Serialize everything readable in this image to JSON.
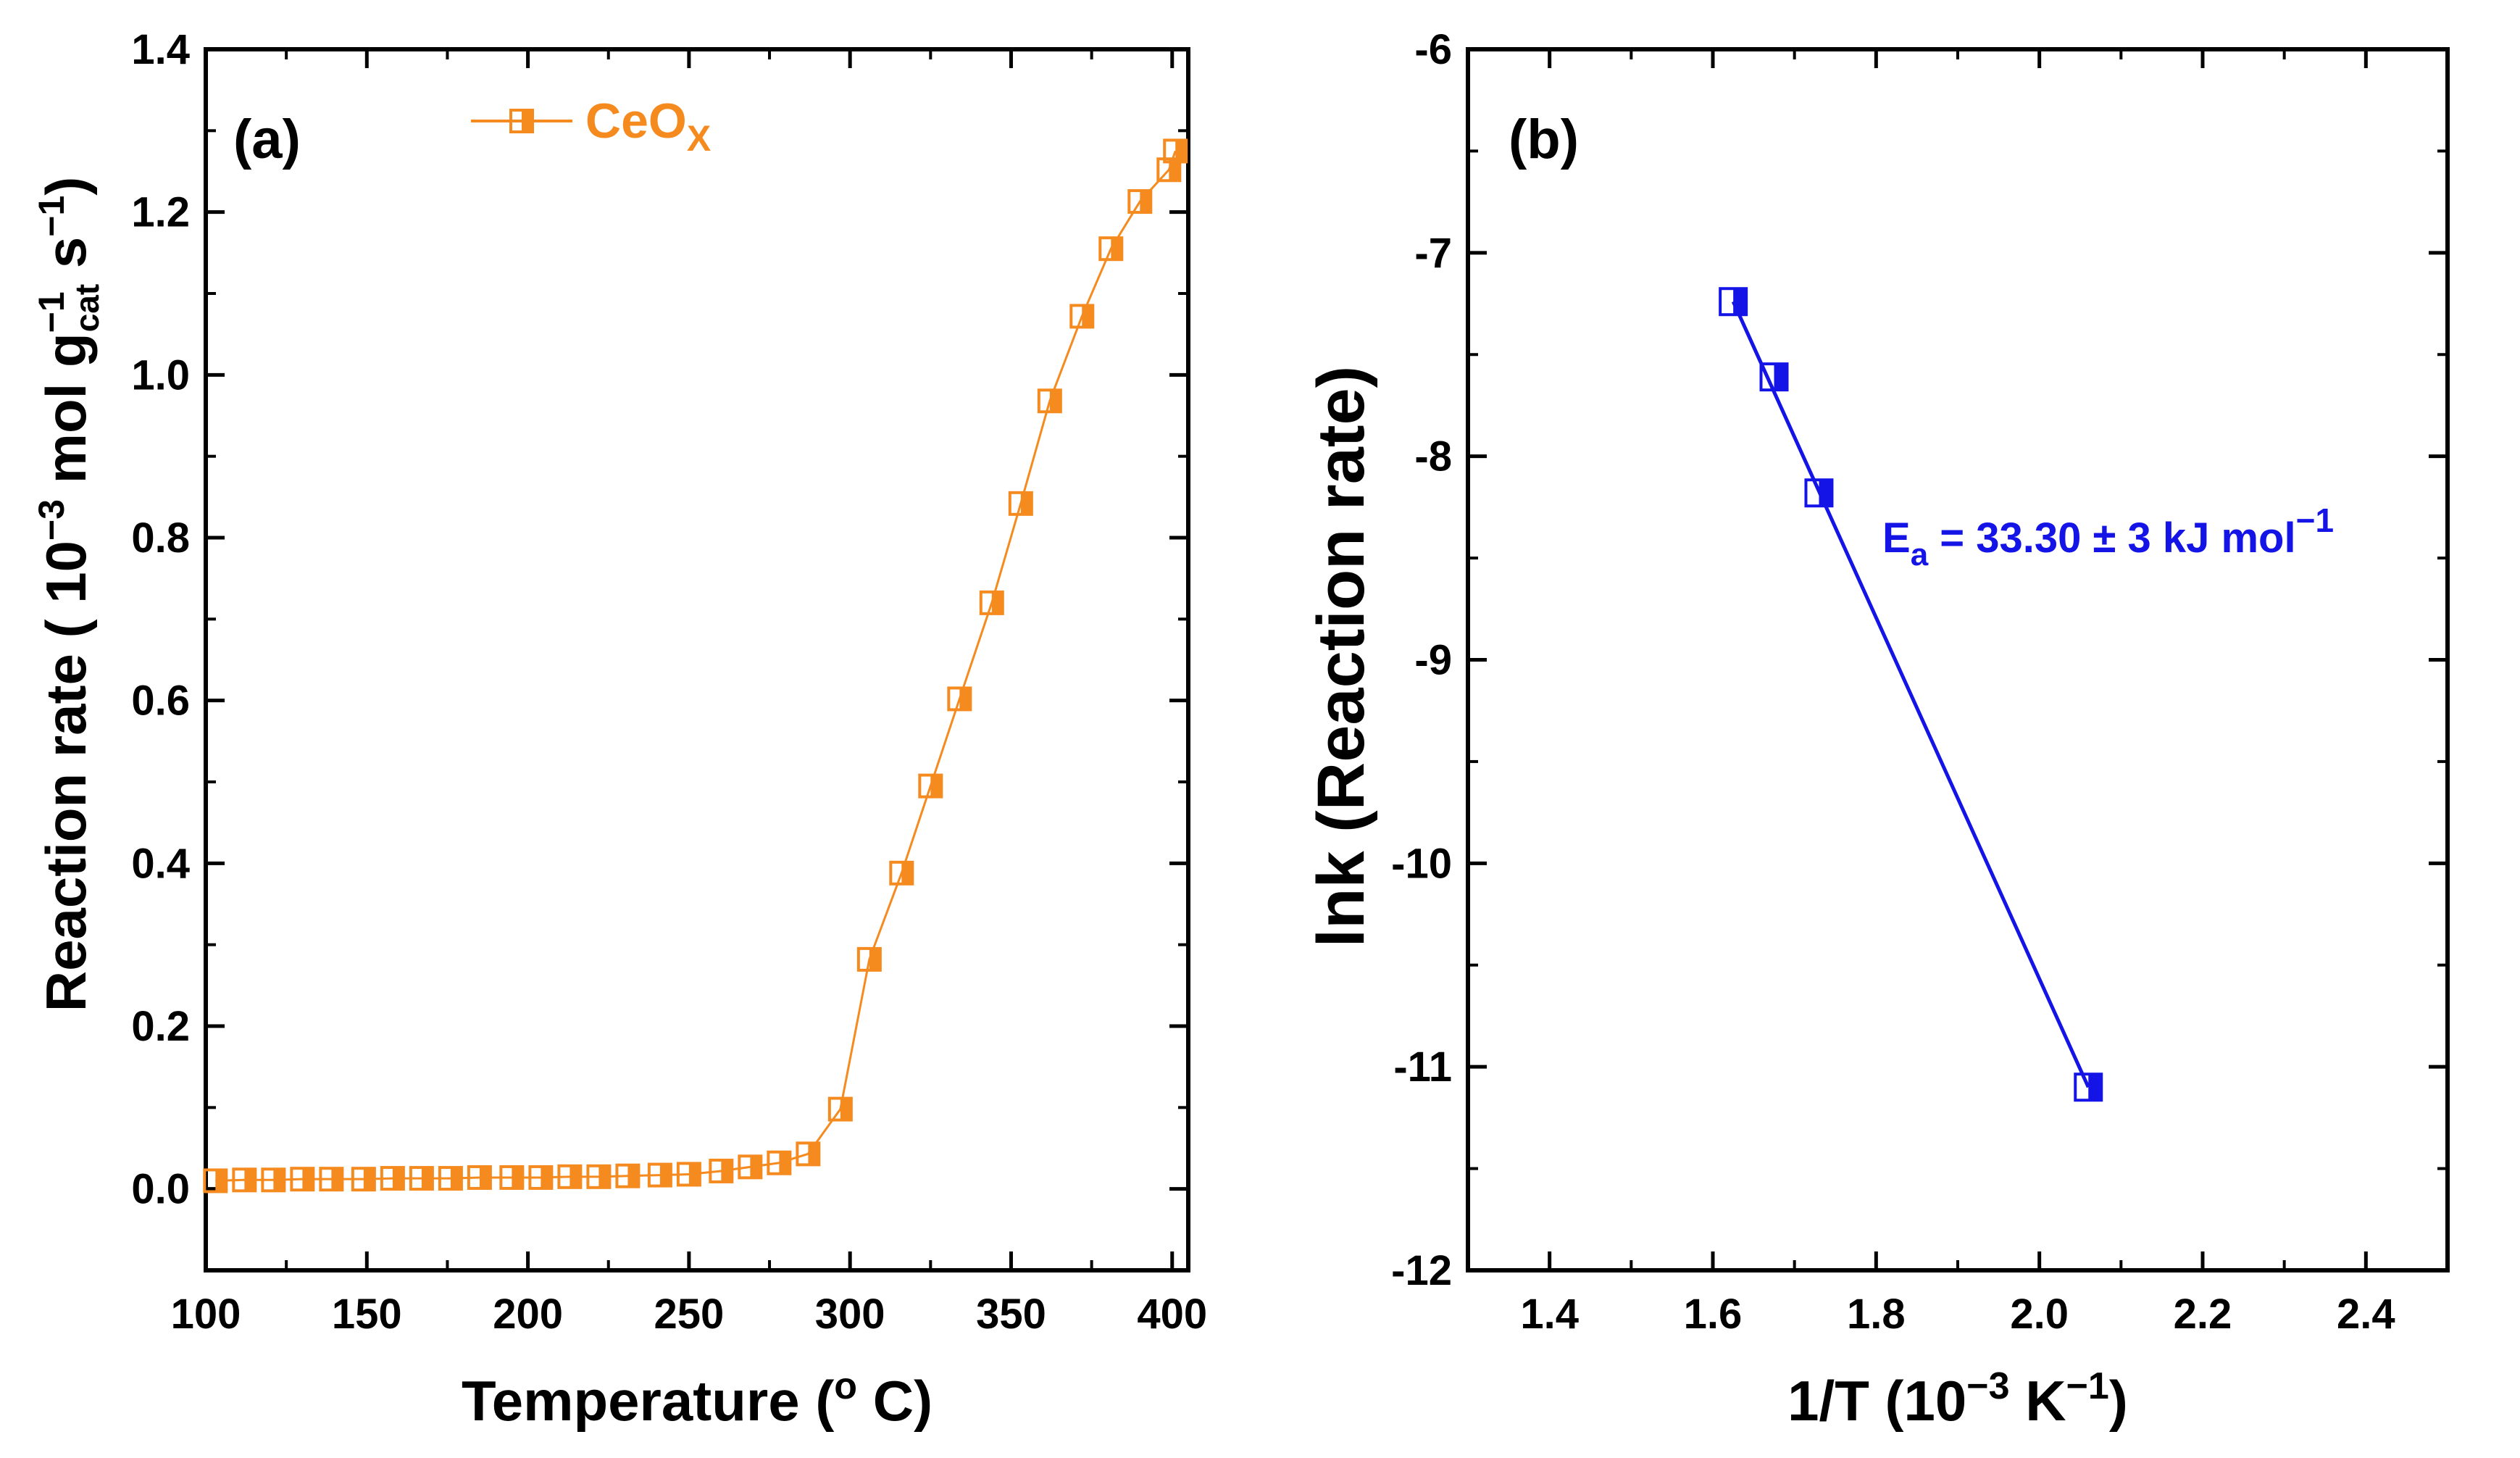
{
  "colors": {
    "series_a": "#f58a1f",
    "series_b": "#1414e6",
    "axis": "#000000"
  },
  "chart_data": [
    {
      "type": "line",
      "panel_label": "(a)",
      "xlabel": {
        "main": "Temperature (",
        "sup": "o",
        "tail": " C)"
      },
      "ylabel": {
        "p1": "Reaction rate ( 10",
        "sup1": "−3",
        "p2": " mol g",
        "sup2": "−1",
        "sub2": "cat",
        "p3": " s",
        "sup3": "−1",
        "p4": ")"
      },
      "xlim": [
        100,
        405
      ],
      "ylim": [
        -0.1,
        1.4
      ],
      "xticks": [
        100,
        150,
        200,
        250,
        300,
        350,
        400
      ],
      "xtick_labels": [
        "100",
        "150",
        "200",
        "250",
        "300",
        "350",
        "400"
      ],
      "yticks": [
        0.0,
        0.2,
        0.4,
        0.6,
        0.8,
        1.0,
        1.2,
        1.4
      ],
      "ytick_labels": [
        "0.0",
        "0.2",
        "0.4",
        "0.6",
        "0.8",
        "1.0",
        "1.2",
        "1.4"
      ],
      "legend": {
        "base": "CeO",
        "sub": "X",
        "placement": "top-center"
      },
      "series": [
        {
          "name": "CeOX",
          "x": [
            103,
            112,
            121,
            130,
            139,
            149,
            158,
            167,
            176,
            185,
            195,
            204,
            213,
            222,
            231,
            241,
            250,
            260,
            269,
            278,
            287,
            297,
            306,
            316,
            325,
            334,
            344,
            353,
            362,
            372,
            381,
            390,
            399,
            401
          ],
          "y": [
            0.01,
            0.011,
            0.011,
            0.012,
            0.012,
            0.012,
            0.013,
            0.013,
            0.013,
            0.014,
            0.014,
            0.014,
            0.015,
            0.015,
            0.016,
            0.017,
            0.018,
            0.022,
            0.027,
            0.032,
            0.043,
            0.098,
            0.282,
            0.388,
            0.495,
            0.602,
            0.72,
            0.842,
            0.968,
            1.072,
            1.155,
            1.213,
            1.252,
            1.275
          ]
        }
      ]
    },
    {
      "type": "line",
      "panel_label": "(b)",
      "xlabel": {
        "main": "1/T (10",
        "sup": "−3",
        "tail1": " K",
        "sup2": "−1",
        "tail2": ")"
      },
      "ylabel": {
        "text": "lnk (Reaction rate)"
      },
      "xlim": [
        1.3,
        2.5
      ],
      "ylim": [
        -12,
        -6
      ],
      "xticks": [
        1.4,
        1.6,
        1.8,
        2.0,
        2.2,
        2.4
      ],
      "xtick_labels": [
        "1.4",
        "1.6",
        "1.8",
        "2.0",
        "2.2",
        "2.4"
      ],
      "yticks": [
        -12,
        -11,
        -10,
        -9,
        -8,
        -7,
        -6
      ],
      "ytick_labels": [
        "-12",
        "-11",
        "-10",
        "-9",
        "-8",
        "-7",
        "-6"
      ],
      "annotation": {
        "base": "E",
        "sub": "a",
        "mid": " = 33.30 ± 3 kJ mol",
        "sup": "−1"
      },
      "series": [
        {
          "name": "lnk",
          "x": [
            1.625,
            1.675,
            1.73,
            2.06
          ],
          "y": [
            -7.24,
            -7.61,
            -8.18,
            -11.1
          ]
        }
      ],
      "fit_line": {
        "x": [
          1.625,
          2.06
        ],
        "y": [
          -7.24,
          -11.1
        ]
      }
    }
  ]
}
